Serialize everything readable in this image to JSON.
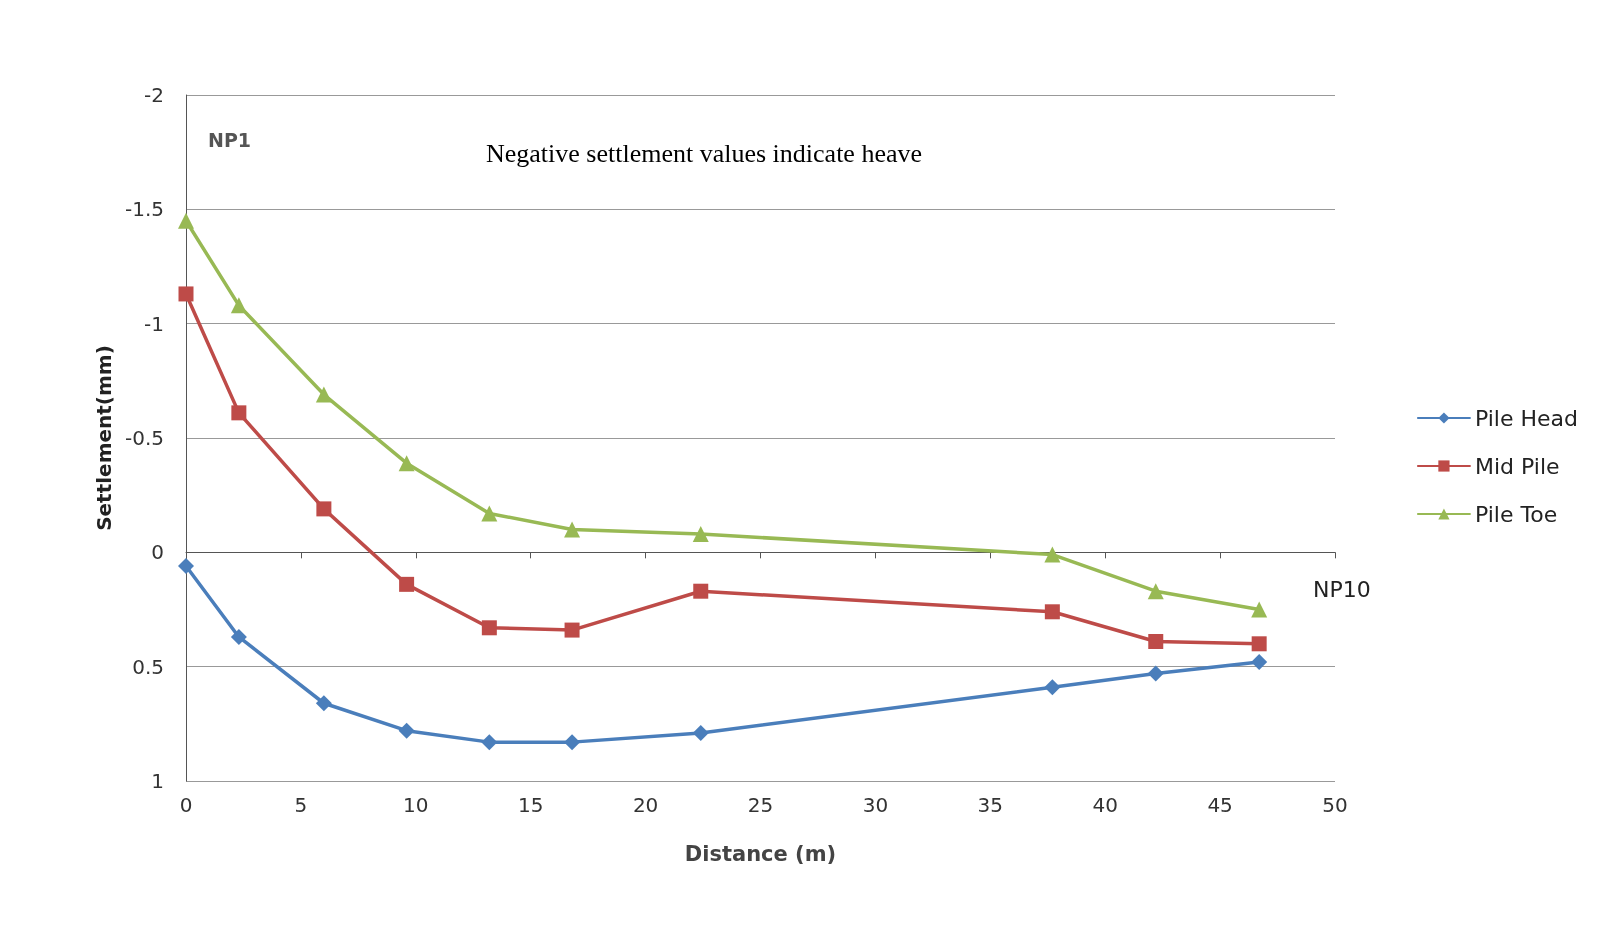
{
  "chart_data": {
    "type": "line",
    "xlabel": "Distance (m)",
    "ylabel": "Settlement(mm)",
    "annotations": [
      "NP1",
      "Negative settlement values indicate heave",
      "NP10"
    ],
    "x": [
      0,
      2.3,
      6.0,
      9.6,
      13.2,
      16.8,
      22.4,
      37.7,
      42.2,
      46.7
    ],
    "series": [
      {
        "name": "Pile Head",
        "color": "#4a7ebb",
        "marker": "diamond",
        "values": [
          0.06,
          0.37,
          0.66,
          0.78,
          0.83,
          0.83,
          0.79,
          0.59,
          0.53,
          0.48
        ]
      },
      {
        "name": "Mid Pile",
        "color": "#be4b48",
        "marker": "square",
        "values": [
          -1.13,
          -0.61,
          -0.19,
          0.14,
          0.33,
          0.34,
          0.17,
          0.26,
          0.39,
          0.4
        ]
      },
      {
        "name": "Pile Toe",
        "color": "#98b954",
        "marker": "triangle",
        "values": [
          -1.45,
          -1.08,
          -0.69,
          -0.39,
          -0.17,
          -0.1,
          -0.08,
          0.01,
          0.17,
          0.25
        ]
      }
    ],
    "xlim": [
      0,
      50
    ],
    "xticks": [
      0,
      5,
      10,
      15,
      20,
      25,
      30,
      35,
      40,
      45,
      50
    ],
    "ylim": [
      1,
      -2
    ],
    "yticks": [
      -2,
      -1.5,
      -1,
      -0.5,
      0,
      0.5,
      1
    ],
    "grid": "y",
    "legend": "right",
    "line_style": "solid"
  }
}
